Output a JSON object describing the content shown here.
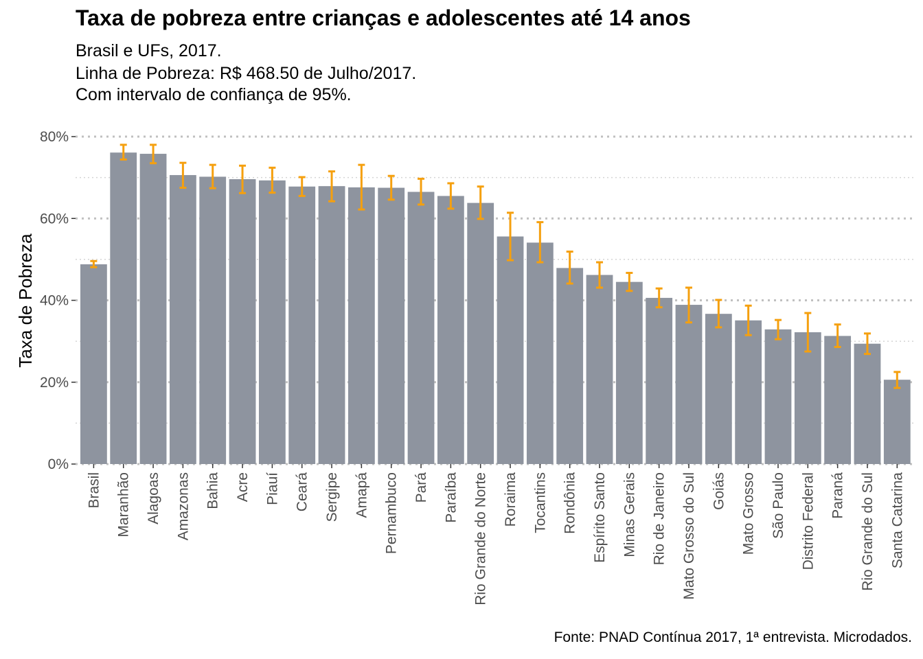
{
  "chart_data": {
    "type": "bar",
    "title": "Taxa de pobreza entre crianças e adolescentes até 14 anos",
    "subtitle": [
      "Brasil e UFs, 2017.",
      "Linha de Pobreza: R$ 468.50 de Julho/2017.",
      "Com intervalo de confiança de 95%."
    ],
    "caption": "Fonte: PNAD Contínua 2017, 1ª entrevista. Microdados.",
    "xlabel": "",
    "ylabel": "Taxa de Pobreza",
    "ylim": [
      0,
      80
    ],
    "yticks": [
      0,
      20,
      40,
      60,
      80
    ],
    "ytick_labels": [
      "0%",
      "20%",
      "40%",
      "60%",
      "80%"
    ],
    "grid": true,
    "legend": "none",
    "categories": [
      "Brasil",
      "Maranhão",
      "Alagoas",
      "Amazonas",
      "Bahia",
      "Acre",
      "Piauí",
      "Ceará",
      "Sergipe",
      "Amapá",
      "Pernambuco",
      "Pará",
      "Paraíba",
      "Rio Grande do Norte",
      "Roraima",
      "Tocantins",
      "Rondônia",
      "Espírito Santo",
      "Minas Gerais",
      "Rio de Janeiro",
      "Mato Grosso do Sul",
      "Goiás",
      "Mato Grosso",
      "São Paulo",
      "Distrito Federal",
      "Paraná",
      "Rio Grande do Sul",
      "Santa Catarina"
    ],
    "values": [
      48.8,
      76.1,
      75.8,
      70.6,
      70.2,
      69.6,
      69.3,
      67.8,
      67.9,
      67.6,
      67.5,
      66.5,
      65.5,
      63.8,
      55.6,
      54.1,
      47.9,
      46.2,
      44.5,
      40.6,
      38.9,
      36.7,
      35.1,
      32.9,
      32.2,
      31.3,
      29.4,
      20.6
    ],
    "ci_lower": [
      48.1,
      74.4,
      73.5,
      67.5,
      67.4,
      66.2,
      66.3,
      65.5,
      64.2,
      62.2,
      64.6,
      63.4,
      62.4,
      59.9,
      49.8,
      49.3,
      44.1,
      43.1,
      42.3,
      38.3,
      34.6,
      33.4,
      31.5,
      30.5,
      27.5,
      28.6,
      26.9,
      18.6
    ],
    "ci_upper": [
      49.6,
      78.0,
      78.0,
      73.6,
      73.1,
      72.9,
      72.4,
      70.1,
      71.5,
      73.1,
      70.4,
      69.7,
      68.6,
      67.8,
      61.4,
      59.1,
      51.9,
      49.3,
      46.7,
      42.9,
      43.1,
      40.1,
      38.7,
      35.2,
      36.9,
      34.1,
      31.9,
      22.5
    ],
    "colors": {
      "bar": "#8e949f",
      "error_bar": "#f5a00f",
      "grid_major": "#c0c0c0",
      "grid_minor": "#d4d4d4",
      "text": "#000000",
      "tick_text": "#4d4d4d"
    }
  }
}
